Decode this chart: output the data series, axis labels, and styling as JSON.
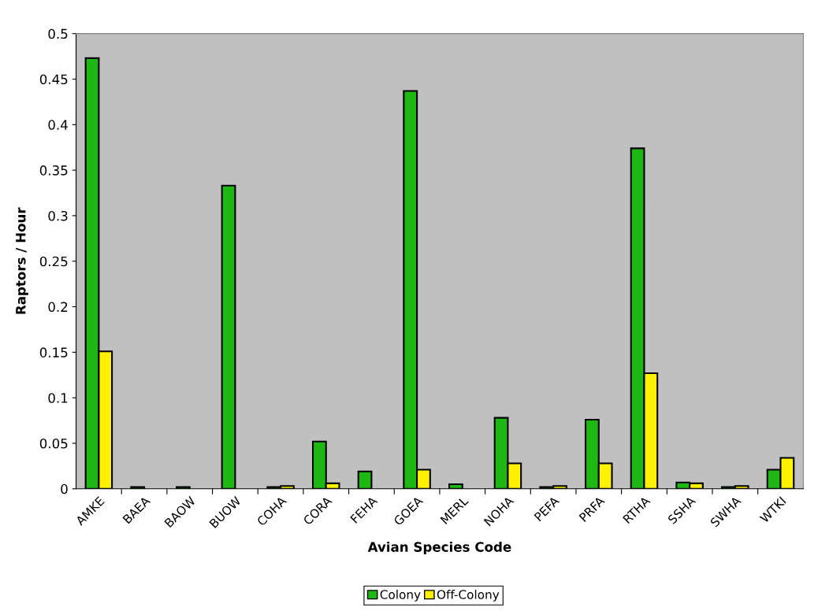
{
  "chart_data": {
    "type": "bar",
    "xlabel": "Avian Species Code",
    "ylabel": "Raptors / Hour",
    "categories": [
      "AMKE",
      "BAEA",
      "BAOW",
      "BUOW",
      "COHA",
      "CORA",
      "FEHA",
      "GOEA",
      "MERL",
      "NOHA",
      "PEFA",
      "PRFA",
      "RTHA",
      "SSHA",
      "SWHA",
      "WTKI"
    ],
    "series": [
      {
        "name": "Colony",
        "color": "#1eb714",
        "values": [
          0.473,
          0.002,
          0.002,
          0.333,
          0.002,
          0.052,
          0.019,
          0.437,
          0.005,
          0.078,
          0.002,
          0.076,
          0.374,
          0.007,
          0.002,
          0.021
        ]
      },
      {
        "name": "Off-Colony",
        "color": "#fff200",
        "values": [
          0.151,
          0,
          0,
          0,
          0.003,
          0.006,
          0,
          0.021,
          0,
          0.028,
          0.003,
          0.028,
          0.127,
          0.006,
          0.003,
          0.034
        ]
      }
    ],
    "ylim": [
      0,
      0.5
    ],
    "yticks": [
      0,
      0.05,
      0.1,
      0.15,
      0.2,
      0.25,
      0.3,
      0.35,
      0.4,
      0.45,
      0.5
    ],
    "grid": false,
    "legend": "bottom"
  }
}
